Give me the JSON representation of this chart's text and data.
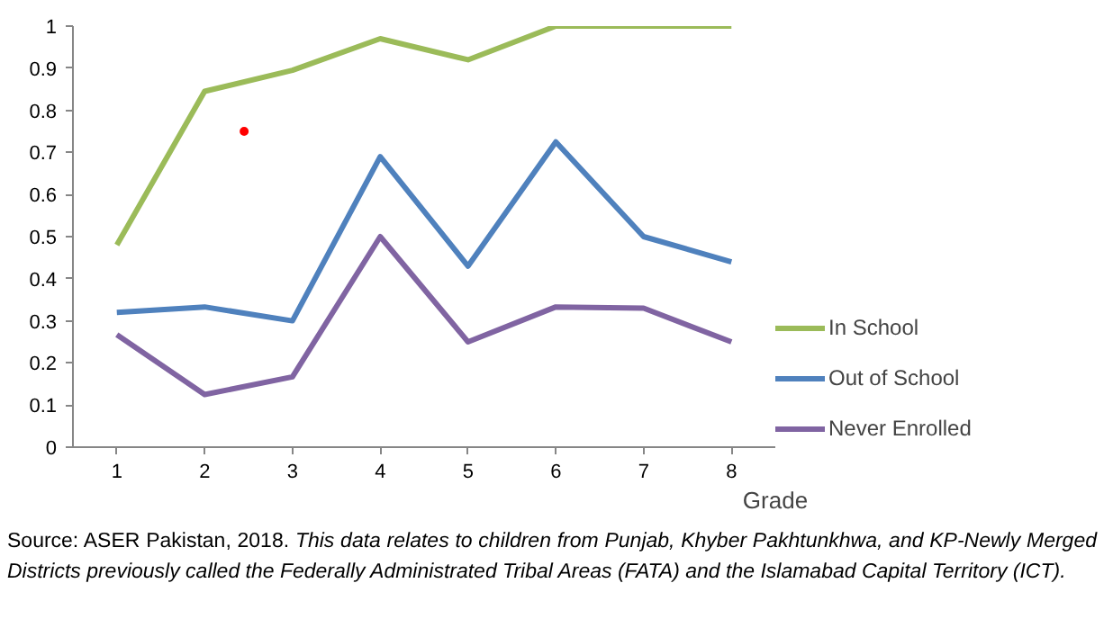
{
  "chart_data": {
    "type": "line",
    "x": [
      1,
      2,
      3,
      4,
      5,
      6,
      7,
      8
    ],
    "xlim": [
      0.5,
      8.5
    ],
    "xticks": [
      1,
      2,
      3,
      4,
      5,
      6,
      7,
      8
    ],
    "ylim": [
      0,
      1
    ],
    "yticks": [
      0,
      0.1,
      0.2,
      0.3,
      0.4,
      0.5,
      0.6,
      0.7,
      0.8,
      0.9,
      1
    ],
    "xlabel": "Grade",
    "series": [
      {
        "name": "In School",
        "color": "#9bbb59",
        "values": [
          0.48,
          0.845,
          0.895,
          0.97,
          0.92,
          1.0,
          1.0,
          1.0
        ]
      },
      {
        "name": "Out of School",
        "color": "#4f81bd",
        "values": [
          0.32,
          0.333,
          0.3,
          0.69,
          0.43,
          0.725,
          0.5,
          0.44
        ]
      },
      {
        "name": "Never Enrolled",
        "color": "#8064a2",
        "values": [
          0.267,
          0.125,
          0.167,
          0.5,
          0.25,
          0.333,
          0.33,
          0.25
        ]
      },
      {
        "type": "scatter",
        "color": "#ff0000",
        "marker": "circle",
        "x": [
          2.45
        ],
        "values": [
          0.75
        ]
      }
    ],
    "legend": "right",
    "grid": false,
    "annotations": [
      "Source: ASER Pakistan, 2018.",
      "This data relates to children from Punjab, Khyber Pakhtunkhwa, and KP-Newly Merged Districts previously called the Federally Administrated Tribal Areas (FATA) and the Islamabad Capital Territory (ICT)."
    ]
  }
}
